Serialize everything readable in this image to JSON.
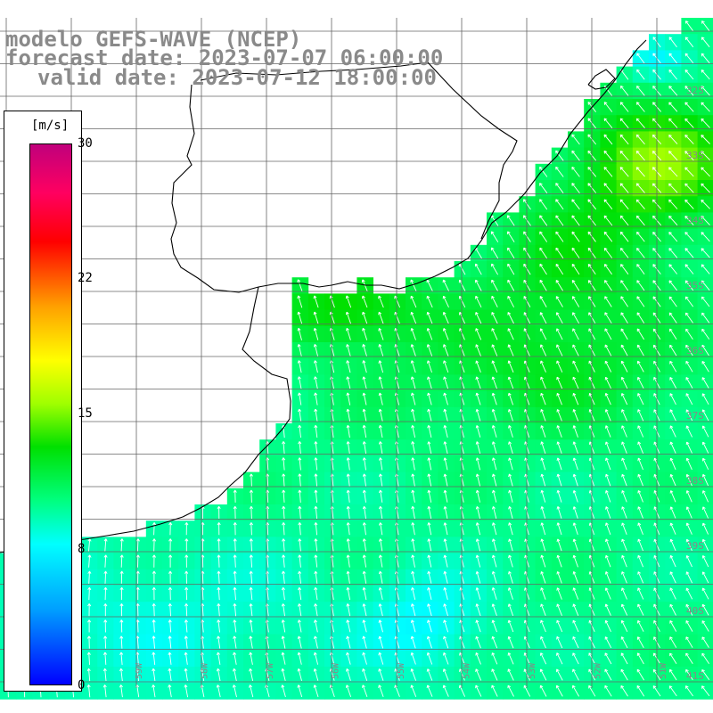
{
  "title": {
    "line1": "modelo GEFS-WAVE (NCEP)",
    "line2": "forecast date: 2023-07-07 06:00:00",
    "line3": "valid date: 2023-07-12 18:00:00"
  },
  "legend": {
    "unit": "[m/s]",
    "min": 0,
    "max": 30,
    "ticks": [
      "30",
      "22",
      "15",
      "8",
      "0"
    ],
    "colors": [
      "#0000ff",
      "#00a0ff",
      "#00ffff",
      "#00ff80",
      "#00e000",
      "#a0ff00",
      "#ffff00",
      "#ffa000",
      "#ff0000",
      "#ff0060",
      "#c0007c"
    ]
  },
  "map": {
    "lat_labels": [
      "32S",
      "33S",
      "34S",
      "35S",
      "36S",
      "37S",
      "38S",
      "39S",
      "40S",
      "41S"
    ],
    "lon_labels": [
      "61W",
      "60W",
      "59W",
      "58W",
      "57W",
      "56W",
      "55W",
      "54W",
      "53W",
      "52W",
      "51W"
    ],
    "colors": {
      "land": "#ffffff",
      "grid": "#666666",
      "coast": "#000000",
      "arrow": "#ffffff"
    }
  }
}
